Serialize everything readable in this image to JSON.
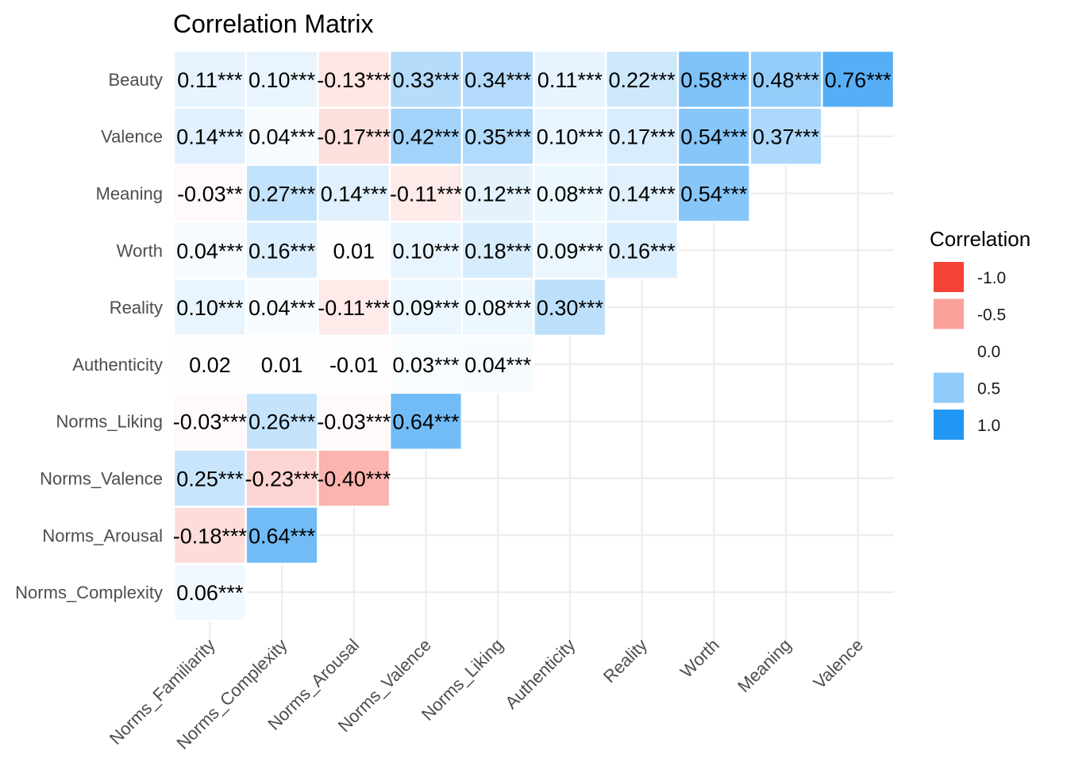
{
  "chart_data": {
    "type": "heatmap",
    "title": "Correlation Matrix",
    "x_categories": [
      "Norms_Familiarity",
      "Norms_Complexity",
      "Norms_Arousal",
      "Norms_Valence",
      "Norms_Liking",
      "Authenticity",
      "Reality",
      "Worth",
      "Meaning",
      "Valence"
    ],
    "y_categories": [
      "Beauty",
      "Valence",
      "Meaning",
      "Worth",
      "Reality",
      "Authenticity",
      "Norms_Liking",
      "Norms_Valence",
      "Norms_Arousal",
      "Norms_Complexity"
    ],
    "values": [
      [
        0.11,
        0.1,
        -0.13,
        0.33,
        0.34,
        0.11,
        0.22,
        0.58,
        0.48,
        0.76
      ],
      [
        0.14,
        0.04,
        -0.17,
        0.42,
        0.35,
        0.1,
        0.17,
        0.54,
        0.37,
        null
      ],
      [
        -0.03,
        0.27,
        0.14,
        -0.11,
        0.12,
        0.08,
        0.14,
        0.54,
        null,
        null
      ],
      [
        0.04,
        0.16,
        0.01,
        0.1,
        0.18,
        0.09,
        0.16,
        null,
        null,
        null
      ],
      [
        0.1,
        0.04,
        -0.11,
        0.09,
        0.08,
        0.3,
        null,
        null,
        null,
        null
      ],
      [
        0.02,
        0.01,
        -0.01,
        0.03,
        0.04,
        null,
        null,
        null,
        null,
        null
      ],
      [
        -0.03,
        0.26,
        -0.03,
        0.64,
        null,
        null,
        null,
        null,
        null,
        null
      ],
      [
        0.25,
        -0.23,
        -0.4,
        null,
        null,
        null,
        null,
        null,
        null,
        null
      ],
      [
        -0.18,
        0.64,
        null,
        null,
        null,
        null,
        null,
        null,
        null,
        null
      ],
      [
        0.06,
        null,
        null,
        null,
        null,
        null,
        null,
        null,
        null,
        null
      ]
    ],
    "labels": [
      [
        "0.11***",
        "0.10***",
        "-0.13***",
        "0.33***",
        "0.34***",
        "0.11***",
        "0.22***",
        "0.58***",
        "0.48***",
        "0.76***"
      ],
      [
        "0.14***",
        "0.04***",
        "-0.17***",
        "0.42***",
        "0.35***",
        "0.10***",
        "0.17***",
        "0.54***",
        "0.37***",
        ""
      ],
      [
        "-0.03**",
        "0.27***",
        "0.14***",
        "-0.11***",
        "0.12***",
        "0.08***",
        "0.14***",
        "0.54***",
        "",
        ""
      ],
      [
        "0.04***",
        "0.16***",
        "0.01",
        "0.10***",
        "0.18***",
        "0.09***",
        "0.16***",
        "",
        "",
        ""
      ],
      [
        "0.10***",
        "0.04***",
        "-0.11***",
        "0.09***",
        "0.08***",
        "0.30***",
        "",
        "",
        "",
        ""
      ],
      [
        "0.02",
        "0.01",
        "-0.01",
        "0.03***",
        "0.04***",
        "",
        "",
        "",
        "",
        ""
      ],
      [
        "-0.03***",
        "0.26***",
        "-0.03***",
        "0.64***",
        "",
        "",
        "",
        "",
        "",
        ""
      ],
      [
        "0.25***",
        "-0.23***",
        "-0.40***",
        "",
        "",
        "",
        "",
        "",
        "",
        ""
      ],
      [
        "-0.18***",
        "0.64***",
        "",
        "",
        "",
        "",
        "",
        "",
        "",
        ""
      ],
      [
        "0.06***",
        "",
        "",
        "",
        "",
        "",
        "",
        "",
        "",
        ""
      ]
    ],
    "legend": {
      "title": "Correlation",
      "placement": "right",
      "entries": [
        {
          "label": "-1.0",
          "value": -1.0
        },
        {
          "label": "-0.5",
          "value": -0.5
        },
        {
          "label": "0.0",
          "value": 0.0
        },
        {
          "label": "0.5",
          "value": 0.5
        },
        {
          "label": "1.0",
          "value": 1.0
        }
      ]
    },
    "colors": {
      "low": "#F44336",
      "mid": "#FFFFFF",
      "high": "#2196F3"
    },
    "scale_limits": [
      -1,
      1
    ],
    "grid": true
  }
}
